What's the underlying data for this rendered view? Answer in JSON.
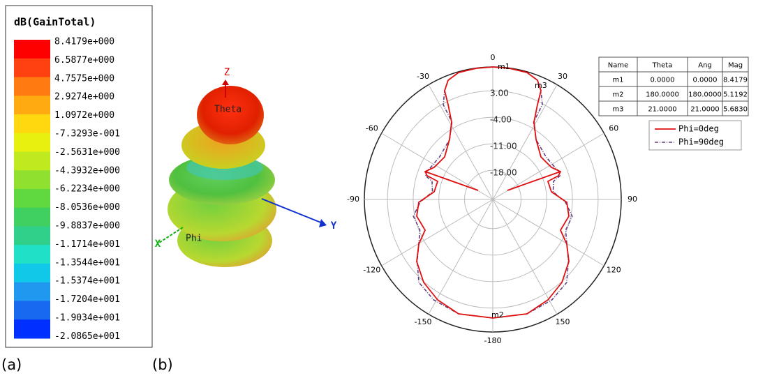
{
  "colorbar": {
    "title": "dB(GainTotal)",
    "labels": [
      "8.4179e+000",
      "6.5877e+000",
      "4.7575e+000",
      "2.9274e+000",
      "1.0972e+000",
      "-7.3293e-001",
      "-2.5631e+000",
      "-4.3932e+000",
      "-6.2234e+000",
      "-8.0536e+000",
      "-9.8837e+000",
      "-1.1714e+001",
      "-1.3544e+001",
      "-1.5374e+001",
      "-1.7204e+001",
      "-1.9034e+001",
      "-2.0865e+001"
    ]
  },
  "pattern_3d": {
    "z_axis": "Z",
    "y_axis": "Y",
    "x_axis": "X",
    "theta": "Theta",
    "phi": "Phi"
  },
  "polar": {
    "angle_labels": [
      "0",
      "30",
      "60",
      "90",
      "120",
      "150",
      "-180",
      "-150",
      "-120",
      "-90",
      "-60",
      "-30"
    ],
    "radial_labels": [
      "3.00",
      "-4.00",
      "-11.00",
      "-18.00"
    ],
    "markers": [
      "m1",
      "m3",
      "m2"
    ],
    "legend": [
      "Phi=0deg",
      "Phi=90deg"
    ]
  },
  "marker_table": {
    "header": [
      "Name",
      "Theta",
      "Ang",
      "Mag"
    ],
    "rows": [
      [
        "m1",
        "0.0000",
        "0.0000",
        "8.4179"
      ],
      [
        "m2",
        "180.0000",
        "180.0000",
        "5.1192"
      ],
      [
        "m3",
        "21.0000",
        "21.0000",
        "5.6830"
      ]
    ]
  },
  "captions": [
    "(a)",
    "(b)"
  ]
}
